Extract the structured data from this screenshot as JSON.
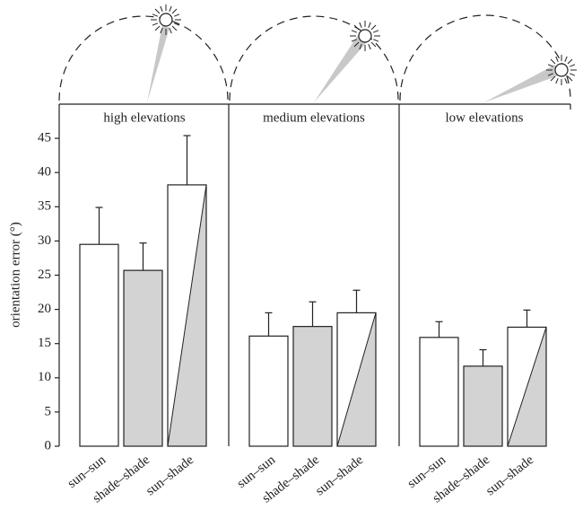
{
  "chart_data": {
    "type": "bar",
    "ylabel": "orientation error (°)",
    "ylim": [
      0,
      50
    ],
    "yticks": [
      0,
      5,
      10,
      15,
      20,
      25,
      30,
      35,
      40,
      45
    ],
    "colors": [
      "#ffffff",
      "#d3d3d3",
      [
        "#ffffff",
        "#d3d3d3"
      ]
    ],
    "panels": [
      {
        "title": "high elevations",
        "categories": [
          "sun–sun",
          "shade–shade",
          "sun–shade"
        ],
        "values": [
          29.5,
          25.7,
          38.2
        ],
        "errors": [
          5.4,
          4.0,
          7.2
        ]
      },
      {
        "title": "medium elevations",
        "categories": [
          "sun–sun",
          "shade–shade",
          "sun–shade"
        ],
        "values": [
          16.1,
          17.5,
          19.5
        ],
        "errors": [
          3.4,
          3.6,
          3.3
        ]
      },
      {
        "title": "low elevations",
        "categories": [
          "sun–sun",
          "shade–shade",
          "sun–shade"
        ],
        "values": [
          15.9,
          11.7,
          17.4
        ],
        "errors": [
          2.3,
          2.4,
          2.5
        ]
      }
    ]
  }
}
